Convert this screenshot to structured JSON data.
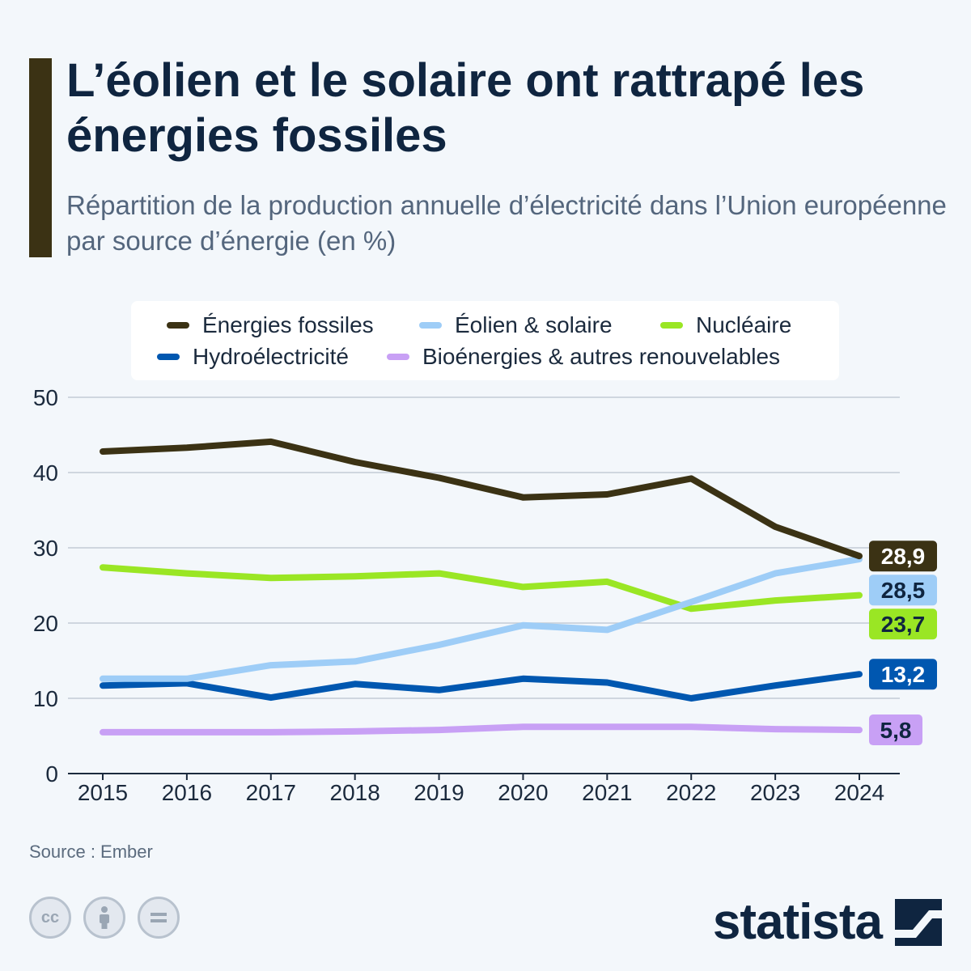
{
  "header": {
    "title": "L’éolien et le solaire ont rattrapé les énergies fossiles",
    "subtitle": "Répartition de la production annuelle d’électricité dans l’Union européenne par source d’énergie (en %)"
  },
  "legend": [
    {
      "label": "Énergies fossiles",
      "color": "#3b3214"
    },
    {
      "label": "Éolien & solaire",
      "color": "#9ecdf7"
    },
    {
      "label": "Nucléaire",
      "color": "#9ae624"
    },
    {
      "label": "Hydroélectricité",
      "color": "#0057b0"
    },
    {
      "label": "Bioénergies & autres renouvelables",
      "color": "#c8a0f5"
    }
  ],
  "chart_data": {
    "type": "line",
    "title": "L’éolien et le solaire ont rattrapé les énergies fossiles",
    "subtitle": "Répartition de la production annuelle d’électricité dans l’Union européenne par source d’énergie (en %)",
    "xlabel": "",
    "ylabel": "",
    "x": [
      "2015",
      "2016",
      "2017",
      "2018",
      "2019",
      "2020",
      "2021",
      "2022",
      "2023",
      "2024"
    ],
    "ylim": [
      0,
      50
    ],
    "yticks": [
      0,
      10,
      20,
      30,
      40,
      50
    ],
    "grid": true,
    "legend_position": "top",
    "series": [
      {
        "name": "Énergies fossiles",
        "color": "#3b3214",
        "label_text_color": "#ffffff",
        "end_label": "28,9",
        "values": [
          42.8,
          43.3,
          44.1,
          41.4,
          39.3,
          36.7,
          37.1,
          39.2,
          32.8,
          28.9
        ]
      },
      {
        "name": "Éolien & solaire",
        "color": "#9ecdf7",
        "label_text_color": "#0f2540",
        "end_label": "28,5",
        "values": [
          12.6,
          12.6,
          14.4,
          14.9,
          17.1,
          19.7,
          19.1,
          22.8,
          26.6,
          28.5
        ]
      },
      {
        "name": "Nucléaire",
        "color": "#9ae624",
        "label_text_color": "#0f2540",
        "end_label": "23,7",
        "values": [
          27.4,
          26.6,
          26.0,
          26.2,
          26.6,
          24.8,
          25.5,
          21.9,
          23.0,
          23.7
        ]
      },
      {
        "name": "Hydroélectricité",
        "color": "#0057b0",
        "label_text_color": "#ffffff",
        "end_label": "13,2",
        "values": [
          11.7,
          12.0,
          10.1,
          11.9,
          11.1,
          12.6,
          12.1,
          10.0,
          11.7,
          13.2
        ]
      },
      {
        "name": "Bioénergies & autres renouvelables",
        "color": "#c8a0f5",
        "label_text_color": "#0f2540",
        "end_label": "5,8",
        "values": [
          5.5,
          5.5,
          5.5,
          5.6,
          5.8,
          6.2,
          6.2,
          6.2,
          5.9,
          5.8
        ]
      }
    ]
  },
  "footer": {
    "source": "Source : Ember",
    "logo": "statista",
    "license_icons": [
      "cc-icon",
      "attribution-icon",
      "no-derivatives-icon"
    ]
  }
}
